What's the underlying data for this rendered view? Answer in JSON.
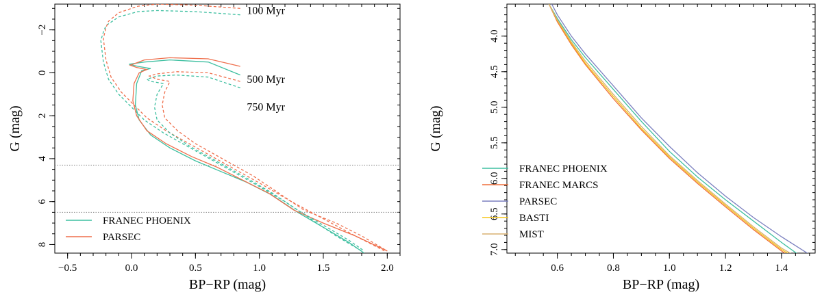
{
  "chart_data": [
    {
      "type": "line",
      "xlabel": "BP−RP (mag)",
      "ylabel": "G (mag)",
      "xlim": [
        -0.6,
        2.1
      ],
      "ylim": [
        8.4,
        -3.2
      ],
      "y_inverted": true,
      "xticks": [
        -0.5,
        0.0,
        0.5,
        1.0,
        1.5,
        2.0
      ],
      "xtick_labels": [
        "−0.5",
        "0.0",
        "0.5",
        "1.0",
        "1.5",
        "2.0"
      ],
      "yticks": [
        -2,
        0,
        2,
        4,
        6,
        8
      ],
      "ytick_labels": [
        "−2",
        "0",
        "2",
        "4",
        "6",
        "8"
      ],
      "grid": false,
      "legend_position": "bottom-left",
      "hlines": [
        4.3,
        6.5
      ],
      "annotations": [
        {
          "text": "100 Myr",
          "x": 0.87,
          "y": -2.9
        },
        {
          "text": "500 Myr",
          "x": 0.87,
          "y": 0.3
        },
        {
          "text": "750 Myr",
          "x": 0.87,
          "y": 1.6
        }
      ],
      "legend": [
        {
          "name": "FRANEC PHOENIX",
          "color": "#3dbfa0"
        },
        {
          "name": "PARSEC",
          "color": "#ef6f4c"
        }
      ],
      "series": [
        {
          "name": "FRANEC PHOENIX",
          "isochrone": "100 Myr",
          "color": "#3dbfa0",
          "dash": true,
          "x": [
            0.85,
            0.5,
            0.2,
            0.05,
            -0.1,
            -0.2,
            -0.22,
            -0.24,
            -0.22,
            -0.18,
            -0.1,
            0.0,
            0.1,
            0.25,
            0.4,
            0.55,
            0.7,
            0.85,
            1.0,
            1.2,
            1.4,
            1.6,
            1.8
          ],
          "y": [
            -2.7,
            -2.85,
            -2.9,
            -2.85,
            -2.6,
            -2.2,
            -1.9,
            -1.5,
            -0.5,
            0.3,
            1.0,
            1.6,
            2.2,
            2.8,
            3.3,
            3.8,
            4.3,
            4.8,
            5.3,
            6.0,
            6.8,
            7.6,
            8.3
          ]
        },
        {
          "name": "PARSEC",
          "isochrone": "100 Myr",
          "color": "#ef6f4c",
          "dash": true,
          "x": [
            0.85,
            0.5,
            0.2,
            0.05,
            -0.1,
            -0.18,
            -0.2,
            -0.22,
            -0.2,
            -0.16,
            -0.08,
            0.02,
            0.12,
            0.27,
            0.42,
            0.57,
            0.72,
            0.87,
            1.02,
            1.25,
            1.5,
            1.75,
            1.98
          ],
          "y": [
            -3.0,
            -3.15,
            -3.2,
            -3.1,
            -2.8,
            -2.4,
            -2.1,
            -1.6,
            -0.6,
            0.2,
            0.9,
            1.5,
            2.1,
            2.7,
            3.2,
            3.7,
            4.2,
            4.7,
            5.2,
            6.0,
            6.8,
            7.6,
            8.3
          ]
        },
        {
          "name": "FRANEC PHOENIX",
          "isochrone": "500 Myr",
          "color": "#3dbfa0",
          "dash": false,
          "x": [
            0.85,
            0.6,
            0.3,
            0.1,
            -0.02,
            0.05,
            0.15,
            0.08,
            0.04,
            0.03,
            0.06,
            0.15,
            0.3,
            0.5,
            0.7,
            0.9,
            1.1,
            1.3,
            1.5,
            1.7,
            1.82
          ],
          "y": [
            0.1,
            -0.5,
            -0.6,
            -0.5,
            -0.4,
            -0.3,
            -0.2,
            -0.1,
            0.5,
            1.5,
            2.2,
            2.9,
            3.5,
            4.1,
            4.6,
            5.1,
            5.7,
            6.5,
            7.2,
            7.9,
            8.4
          ]
        },
        {
          "name": "PARSEC",
          "isochrone": "500 Myr",
          "color": "#ef6f4c",
          "dash": false,
          "x": [
            0.85,
            0.6,
            0.3,
            0.1,
            -0.01,
            0.04,
            0.12,
            0.06,
            0.02,
            0.01,
            0.04,
            0.12,
            0.27,
            0.47,
            0.67,
            0.87,
            1.07,
            1.27,
            1.5,
            1.75,
            2.0
          ],
          "y": [
            -0.3,
            -0.65,
            -0.7,
            -0.6,
            -0.35,
            -0.25,
            -0.15,
            0.0,
            0.5,
            1.3,
            2.0,
            2.7,
            3.3,
            3.9,
            4.4,
            5.0,
            5.6,
            6.4,
            7.0,
            7.6,
            8.3
          ]
        },
        {
          "name": "FRANEC PHOENIX",
          "isochrone": "750 Myr",
          "color": "#3dbfa0",
          "dash": true,
          "x": [
            0.85,
            0.6,
            0.35,
            0.2,
            0.12,
            0.15,
            0.25,
            0.2,
            0.18,
            0.2,
            0.3,
            0.45,
            0.6,
            0.75,
            0.9,
            1.1,
            1.3,
            1.5,
            1.7,
            1.82
          ],
          "y": [
            0.7,
            0.2,
            0.1,
            0.15,
            0.3,
            0.4,
            0.5,
            1.0,
            1.6,
            2.2,
            2.8,
            3.4,
            3.9,
            4.4,
            4.9,
            5.6,
            6.4,
            7.1,
            7.8,
            8.3
          ]
        },
        {
          "name": "PARSEC",
          "isochrone": "750 Myr",
          "color": "#ef6f4c",
          "dash": true,
          "x": [
            0.85,
            0.6,
            0.35,
            0.2,
            0.14,
            0.2,
            0.3,
            0.26,
            0.24,
            0.26,
            0.36,
            0.5,
            0.65,
            0.8,
            0.95,
            1.15,
            1.35,
            1.6,
            1.8,
            2.0
          ],
          "y": [
            0.4,
            0.0,
            -0.05,
            0.05,
            0.15,
            0.3,
            0.4,
            0.9,
            1.5,
            2.1,
            2.7,
            3.3,
            3.8,
            4.3,
            4.8,
            5.6,
            6.4,
            7.0,
            7.6,
            8.3
          ]
        }
      ]
    },
    {
      "type": "line",
      "xlabel": "BP−RP (mag)",
      "ylabel": "G (mag)",
      "xlim": [
        0.42,
        1.52
      ],
      "ylim": [
        7.05,
        3.55
      ],
      "y_inverted": true,
      "xticks": [
        0.6,
        0.8,
        1.0,
        1.2,
        1.4
      ],
      "xtick_labels": [
        "0.6",
        "0.8",
        "1.0",
        "1.2",
        "1.4"
      ],
      "yticks": [
        4.0,
        4.5,
        5.0,
        5.5,
        6.0,
        6.5,
        7.0
      ],
      "ytick_labels": [
        "4.0",
        "4.5",
        "5.0",
        "5.5",
        "6.0",
        "6.5",
        "7.0"
      ],
      "grid": false,
      "legend_position": "lower-left",
      "legend": [
        {
          "name": "FRANEC PHOENIX",
          "color": "#3dbfa0"
        },
        {
          "name": "FRANEC MARCS",
          "color": "#ef6f3a"
        },
        {
          "name": "PARSEC",
          "color": "#7a7fbf"
        },
        {
          "name": "BASTI",
          "color": "#f5c518"
        },
        {
          "name": "MIST",
          "color": "#d9b070"
        }
      ],
      "series": [
        {
          "name": "FRANEC PHOENIX",
          "color": "#3dbfa0",
          "x": [
            0.57,
            0.6,
            0.65,
            0.7,
            0.8,
            0.9,
            1.0,
            1.1,
            1.2,
            1.3,
            1.4,
            1.46
          ],
          "y": [
            3.55,
            3.75,
            4.05,
            4.3,
            4.75,
            5.2,
            5.62,
            5.98,
            6.3,
            6.6,
            6.9,
            7.07
          ]
        },
        {
          "name": "FRANEC MARCS",
          "color": "#ef6f3a",
          "x": [
            0.57,
            0.6,
            0.65,
            0.7,
            0.8,
            0.9,
            1.0,
            1.1,
            1.2,
            1.3,
            1.4,
            1.42
          ],
          "y": [
            3.55,
            3.8,
            4.12,
            4.4,
            4.88,
            5.32,
            5.72,
            6.07,
            6.4,
            6.72,
            7.02,
            7.07
          ]
        },
        {
          "name": "PARSEC",
          "color": "#7a7fbf",
          "x": [
            0.58,
            0.6,
            0.65,
            0.7,
            0.8,
            0.9,
            1.0,
            1.1,
            1.2,
            1.3,
            1.4,
            1.5
          ],
          "y": [
            3.55,
            3.7,
            4.0,
            4.25,
            4.7,
            5.15,
            5.55,
            5.92,
            6.25,
            6.55,
            6.82,
            7.07
          ]
        },
        {
          "name": "BASTI",
          "color": "#f5c518",
          "x": [
            0.57,
            0.6,
            0.65,
            0.7,
            0.8,
            0.9,
            1.0,
            1.1,
            1.2,
            1.3,
            1.4,
            1.43
          ],
          "y": [
            3.55,
            3.78,
            4.1,
            4.38,
            4.85,
            5.3,
            5.7,
            6.05,
            6.38,
            6.7,
            7.0,
            7.07
          ]
        },
        {
          "name": "MIST",
          "color": "#d9b070",
          "x": [
            0.57,
            0.6,
            0.65,
            0.7,
            0.8,
            0.9,
            1.0,
            1.1,
            1.2,
            1.3,
            1.4,
            1.44
          ],
          "y": [
            3.55,
            3.77,
            4.08,
            4.35,
            4.82,
            5.27,
            5.68,
            6.03,
            6.36,
            6.68,
            6.98,
            7.07
          ]
        }
      ]
    }
  ]
}
